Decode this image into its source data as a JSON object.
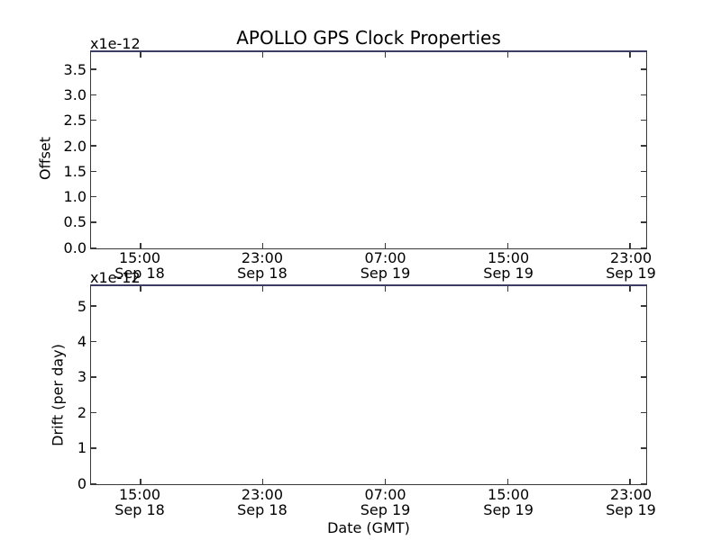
{
  "figure": {
    "title": "APOLLO GPS Clock Properties",
    "colors": {
      "background": "#ffffff",
      "spine": "#383838",
      "top_spine": "#3b3b64",
      "text": "#000000"
    }
  },
  "chart_data": [
    {
      "type": "line",
      "title": "APOLLO GPS Clock Properties",
      "ylabel": "Offset",
      "offset_text": "x1e-12",
      "ylim": [
        0,
        3.85
      ],
      "yticks": [
        {
          "value": 0.0,
          "label": "0.0"
        },
        {
          "value": 0.5,
          "label": "0.5"
        },
        {
          "value": 1.0,
          "label": "1.0"
        },
        {
          "value": 1.5,
          "label": "1.5"
        },
        {
          "value": 2.0,
          "label": "2.0"
        },
        {
          "value": 2.5,
          "label": "2.5"
        },
        {
          "value": 3.0,
          "label": "3.0"
        },
        {
          "value": 3.5,
          "label": "3.5"
        }
      ],
      "xticks": [
        {
          "frac": 0.089,
          "line1": "15:00",
          "line2": "Sep 18"
        },
        {
          "frac": 0.309,
          "line1": "23:00",
          "line2": "Sep 18"
        },
        {
          "frac": 0.53,
          "line1": "07:00",
          "line2": "Sep 19"
        },
        {
          "frac": 0.751,
          "line1": "15:00",
          "line2": "Sep 19"
        },
        {
          "frac": 0.971,
          "line1": "23:00",
          "line2": "Sep 19"
        }
      ],
      "series": [],
      "legend": null,
      "grid": false
    },
    {
      "type": "line",
      "title": "",
      "ylabel": "Drift (per day)",
      "xlabel": "Date (GMT)",
      "offset_text": "x1e-12",
      "ylim": [
        0,
        5.58
      ],
      "yticks": [
        {
          "value": 0,
          "label": "0"
        },
        {
          "value": 1,
          "label": "1"
        },
        {
          "value": 2,
          "label": "2"
        },
        {
          "value": 3,
          "label": "3"
        },
        {
          "value": 4,
          "label": "4"
        },
        {
          "value": 5,
          "label": "5"
        }
      ],
      "xticks": [
        {
          "frac": 0.089,
          "line1": "15:00",
          "line2": "Sep 18"
        },
        {
          "frac": 0.309,
          "line1": "23:00",
          "line2": "Sep 18"
        },
        {
          "frac": 0.53,
          "line1": "07:00",
          "line2": "Sep 19"
        },
        {
          "frac": 0.751,
          "line1": "15:00",
          "line2": "Sep 19"
        },
        {
          "frac": 0.971,
          "line1": "23:00",
          "line2": "Sep 19"
        }
      ],
      "series": [],
      "legend": null,
      "grid": false
    }
  ]
}
